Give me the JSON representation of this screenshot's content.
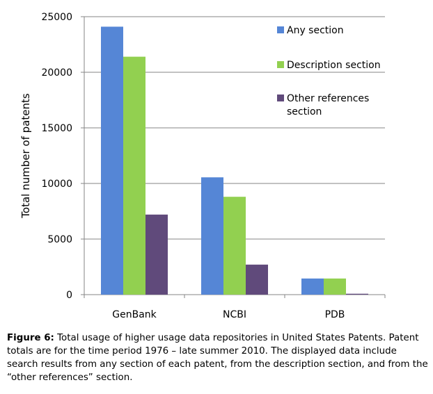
{
  "chart_data": {
    "type": "bar",
    "title": "",
    "xlabel": "",
    "ylabel": "Total number of patents",
    "ylim": [
      0,
      25000
    ],
    "yticks": [
      0,
      5000,
      10000,
      15000,
      20000,
      25000
    ],
    "grid": true,
    "legend_position": "top-right",
    "categories": [
      "GenBank",
      "NCBI",
      "PDB"
    ],
    "series": [
      {
        "name": "Any section",
        "color": "#5586d6",
        "values": [
          24100,
          10550,
          1450
        ]
      },
      {
        "name": "Description section",
        "color": "#92d050",
        "values": [
          21400,
          8800,
          1450
        ]
      },
      {
        "name": "Other references section",
        "color": "#604a7b",
        "values": [
          7200,
          2700,
          80
        ]
      }
    ]
  },
  "caption": {
    "label": "Figure 6:",
    "text": " Total usage of higher usage data repositories in United States Patents. Patent totals are for the time period 1976 – late summer 2010.  The displayed data include search results from any section of each patent, from the description section, and from the “other references” section."
  }
}
